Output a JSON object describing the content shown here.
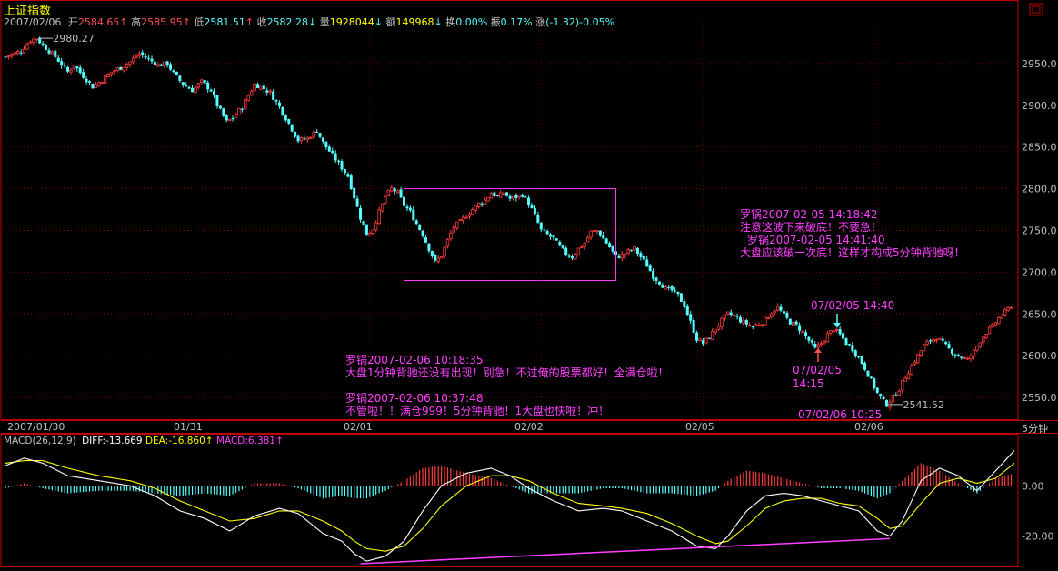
{
  "header": {
    "title": "上证指数",
    "date": "2007/02/06",
    "open_label": "开",
    "open": "2584.65",
    "high_label": "高",
    "high": "2585.95",
    "low_label": "低",
    "low": "2581.51",
    "close_label": "收",
    "close": "2582.28",
    "volume_label": "量",
    "volume": "1928044",
    "amount_label": "额",
    "amount": "149968",
    "turnover_label": "换",
    "turnover": "0.00%",
    "amplitude_label": "振",
    "amplitude": "0.17%",
    "change_label": "涨",
    "change": "(-1.32)-0.05%"
  },
  "period": "5分钟",
  "colors": {
    "up": "#ff3c3c",
    "down": "#54ffff",
    "annotation": "#ff40ff",
    "axis_frame": "#c00000",
    "yellow": "#ffff00",
    "white": "#ffffff"
  },
  "chart_data": [
    {
      "type": "candlestick",
      "title": "上证指数",
      "ylim": [
        2525,
        3000
      ],
      "y_ticks": [
        "2950.0",
        "2900.0",
        "2850.0",
        "2800.0",
        "2750.0",
        "2700.0",
        "2650.0",
        "2600.0",
        "2550.0"
      ],
      "x_tick_labels": [
        "2007/01/30",
        "01/31",
        "02/01",
        "02/02",
        "02/05",
        "02/06"
      ],
      "close_series": [
        [
          0,
          2958
        ],
        [
          5,
          2965
        ],
        [
          8,
          2978
        ],
        [
          10,
          2980.27
        ],
        [
          12,
          2972
        ],
        [
          16,
          2958
        ],
        [
          20,
          2940
        ],
        [
          22,
          2948
        ],
        [
          25,
          2935
        ],
        [
          28,
          2922
        ],
        [
          31,
          2930
        ],
        [
          34,
          2940
        ],
        [
          37,
          2945
        ],
        [
          40,
          2952
        ],
        [
          43,
          2962
        ],
        [
          46,
          2955
        ],
        [
          49,
          2948
        ],
        [
          52,
          2950
        ],
        [
          54,
          2938
        ],
        [
          57,
          2925
        ],
        [
          60,
          2918
        ],
        [
          63,
          2928
        ],
        [
          66,
          2918
        ],
        [
          68,
          2900
        ],
        [
          71,
          2880
        ],
        [
          73,
          2885
        ],
        [
          76,
          2898
        ],
        [
          78,
          2912
        ],
        [
          80,
          2925
        ],
        [
          82,
          2922
        ],
        [
          85,
          2915
        ],
        [
          88,
          2898
        ],
        [
          91,
          2878
        ],
        [
          94,
          2858
        ],
        [
          97,
          2860
        ],
        [
          100,
          2870
        ],
        [
          102,
          2855
        ],
        [
          105,
          2840
        ],
        [
          107,
          2830
        ],
        [
          110,
          2815
        ],
        [
          112,
          2790
        ],
        [
          114,
          2765
        ],
        [
          116,
          2745
        ],
        [
          118,
          2752
        ],
        [
          120,
          2772
        ],
        [
          122,
          2790
        ],
        [
          124,
          2800
        ],
        [
          126,
          2795
        ],
        [
          128,
          2780
        ],
        [
          130,
          2772
        ],
        [
          132,
          2758
        ],
        [
          134,
          2745
        ],
        [
          136,
          2728
        ],
        [
          138,
          2712
        ],
        [
          140,
          2720
        ],
        [
          142,
          2738
        ],
        [
          144,
          2755
        ],
        [
          146,
          2760
        ],
        [
          148,
          2768
        ],
        [
          150,
          2775
        ],
        [
          152,
          2782
        ],
        [
          154,
          2786
        ],
        [
          156,
          2795
        ],
        [
          158,
          2790
        ],
        [
          160,
          2795
        ],
        [
          162,
          2788
        ],
        [
          164,
          2790
        ],
        [
          166,
          2793
        ],
        [
          168,
          2782
        ],
        [
          170,
          2768
        ],
        [
          172,
          2750
        ],
        [
          174,
          2745
        ],
        [
          176,
          2740
        ],
        [
          178,
          2730
        ],
        [
          180,
          2722
        ],
        [
          182,
          2718
        ],
        [
          184,
          2728
        ],
        [
          186,
          2735
        ],
        [
          188,
          2748
        ],
        [
          190,
          2750
        ],
        [
          192,
          2740
        ],
        [
          194,
          2730
        ],
        [
          196,
          2718
        ],
        [
          198,
          2720
        ],
        [
          200,
          2725
        ],
        [
          202,
          2728
        ],
        [
          204,
          2718
        ],
        [
          206,
          2708
        ],
        [
          208,
          2695
        ],
        [
          210,
          2688
        ],
        [
          212,
          2680
        ],
        [
          214,
          2678
        ],
        [
          216,
          2672
        ],
        [
          218,
          2660
        ],
        [
          220,
          2640
        ],
        [
          222,
          2620
        ],
        [
          224,
          2615
        ],
        [
          226,
          2622
        ],
        [
          228,
          2632
        ],
        [
          230,
          2642
        ],
        [
          232,
          2650
        ],
        [
          234,
          2648
        ],
        [
          236,
          2642
        ],
        [
          238,
          2638
        ],
        [
          240,
          2635
        ],
        [
          242,
          2638
        ],
        [
          244,
          2643
        ],
        [
          246,
          2652
        ],
        [
          248,
          2658
        ],
        [
          250,
          2648
        ],
        [
          252,
          2640
        ],
        [
          254,
          2636
        ],
        [
          256,
          2628
        ],
        [
          258,
          2618
        ],
        [
          260,
          2608
        ],
        [
          262,
          2615
        ],
        [
          264,
          2625
        ],
        [
          266,
          2632
        ],
        [
          268,
          2625
        ],
        [
          270,
          2615
        ],
        [
          272,
          2608
        ],
        [
          274,
          2598
        ],
        [
          276,
          2585
        ],
        [
          278,
          2570
        ],
        [
          280,
          2555
        ],
        [
          282,
          2545
        ],
        [
          283,
          2541.52
        ],
        [
          285,
          2550
        ],
        [
          287,
          2560
        ],
        [
          289,
          2575
        ],
        [
          291,
          2588
        ],
        [
          293,
          2600
        ],
        [
          295,
          2612
        ],
        [
          297,
          2618
        ],
        [
          299,
          2622
        ],
        [
          301,
          2615
        ],
        [
          303,
          2608
        ],
        [
          305,
          2602
        ],
        [
          307,
          2598
        ],
        [
          309,
          2595
        ],
        [
          311,
          2605
        ],
        [
          313,
          2618
        ],
        [
          315,
          2628
        ],
        [
          317,
          2635
        ],
        [
          319,
          2645
        ],
        [
          321,
          2652
        ],
        [
          323,
          2660
        ]
      ],
      "labels": [
        {
          "text": "2980.27",
          "x": 10,
          "y": 2980.27
        },
        {
          "text": "2541.52",
          "x": 283,
          "y": 2541.52
        }
      ],
      "highlight_box": {
        "x": [
          128,
          196
        ],
        "y": [
          2690,
          2800
        ]
      },
      "annotations": {
        "note1_title": "罗锅2007-02-05 14:18:42",
        "note1_text": "注意这波下来破底！不要急！",
        "note2_title": "罗锅2007-02-05 14:41:40",
        "note2_text": "大盘应该破一次底！这样才构成5分钟背驰呀！",
        "note3_title": "罗锅2007-02-06 10:18:35",
        "note3_text": "大盘1分钟背驰还没有出现！别急！不过俺的股票都好！全满仓啦！",
        "note4_title": "罗锅2007-02-06 10:37:48",
        "note4_text": "不管啦！！满仓999！5分钟背驰！1大盘也快啦！冲！",
        "mark_a_date": "07/02/05",
        "mark_a_time": "14:15",
        "mark_b": "07/02/05 14:40",
        "mark_c": "07/02/06 10:25"
      }
    },
    {
      "type": "line",
      "title": "MACD(26,12,9)",
      "diff_label": "DIFF:",
      "diff": "-13.669",
      "dea_label": "DEA:",
      "dea": "-16.860",
      "macd_label": "MACD:",
      "macd": "6.381",
      "ylim": [
        -31,
        16
      ],
      "y_ticks": [
        "0.00",
        "-20.00"
      ],
      "diff_series": [
        [
          0,
          8
        ],
        [
          6,
          11
        ],
        [
          12,
          9
        ],
        [
          20,
          4
        ],
        [
          30,
          2
        ],
        [
          40,
          0
        ],
        [
          48,
          -4
        ],
        [
          56,
          -10
        ],
        [
          64,
          -13
        ],
        [
          72,
          -18
        ],
        [
          80,
          -12
        ],
        [
          88,
          -9
        ],
        [
          94,
          -11
        ],
        [
          102,
          -19
        ],
        [
          108,
          -22
        ],
        [
          112,
          -27
        ],
        [
          116,
          -30
        ],
        [
          122,
          -28
        ],
        [
          128,
          -22
        ],
        [
          134,
          -10
        ],
        [
          140,
          0
        ],
        [
          148,
          5
        ],
        [
          156,
          7
        ],
        [
          162,
          4
        ],
        [
          168,
          -1
        ],
        [
          176,
          -6
        ],
        [
          184,
          -10
        ],
        [
          192,
          -9
        ],
        [
          198,
          -10
        ],
        [
          206,
          -14
        ],
        [
          214,
          -18
        ],
        [
          222,
          -24
        ],
        [
          228,
          -25
        ],
        [
          232,
          -20
        ],
        [
          238,
          -10
        ],
        [
          244,
          -4
        ],
        [
          250,
          -3
        ],
        [
          256,
          -4
        ],
        [
          262,
          -6
        ],
        [
          268,
          -8
        ],
        [
          274,
          -10
        ],
        [
          280,
          -18
        ],
        [
          284,
          -20
        ],
        [
          288,
          -14
        ],
        [
          294,
          2
        ],
        [
          300,
          7
        ],
        [
          306,
          4
        ],
        [
          312,
          -2
        ],
        [
          318,
          6
        ],
        [
          324,
          14
        ]
      ],
      "dea_series": [
        [
          0,
          9
        ],
        [
          6,
          10
        ],
        [
          12,
          10
        ],
        [
          20,
          7
        ],
        [
          30,
          4
        ],
        [
          40,
          2
        ],
        [
          48,
          -1
        ],
        [
          56,
          -6
        ],
        [
          64,
          -10
        ],
        [
          72,
          -14
        ],
        [
          80,
          -13
        ],
        [
          88,
          -10
        ],
        [
          94,
          -10
        ],
        [
          102,
          -14
        ],
        [
          108,
          -18
        ],
        [
          112,
          -22
        ],
        [
          116,
          -25
        ],
        [
          122,
          -26
        ],
        [
          128,
          -24
        ],
        [
          134,
          -17
        ],
        [
          140,
          -8
        ],
        [
          148,
          0
        ],
        [
          156,
          4
        ],
        [
          162,
          4
        ],
        [
          168,
          2
        ],
        [
          176,
          -3
        ],
        [
          184,
          -7
        ],
        [
          192,
          -8
        ],
        [
          198,
          -9
        ],
        [
          206,
          -11
        ],
        [
          214,
          -15
        ],
        [
          222,
          -20
        ],
        [
          228,
          -23
        ],
        [
          232,
          -22
        ],
        [
          238,
          -16
        ],
        [
          244,
          -9
        ],
        [
          250,
          -6
        ],
        [
          256,
          -5
        ],
        [
          262,
          -5
        ],
        [
          268,
          -7
        ],
        [
          274,
          -8
        ],
        [
          280,
          -13
        ],
        [
          284,
          -17
        ],
        [
          288,
          -16
        ],
        [
          294,
          -7
        ],
        [
          300,
          1
        ],
        [
          306,
          3
        ],
        [
          312,
          1
        ],
        [
          318,
          3
        ],
        [
          324,
          9
        ]
      ],
      "macd_series": [
        [
          0,
          -1
        ],
        [
          6,
          1
        ],
        [
          12,
          -1
        ],
        [
          20,
          -3
        ],
        [
          30,
          -2
        ],
        [
          40,
          -2
        ],
        [
          48,
          -3
        ],
        [
          56,
          -4
        ],
        [
          64,
          -3
        ],
        [
          72,
          -4
        ],
        [
          80,
          1
        ],
        [
          88,
          1
        ],
        [
          94,
          -1
        ],
        [
          102,
          -5
        ],
        [
          108,
          -4
        ],
        [
          112,
          -5
        ],
        [
          116,
          -5
        ],
        [
          122,
          -2
        ],
        [
          128,
          2
        ],
        [
          134,
          7
        ],
        [
          140,
          8
        ],
        [
          148,
          5
        ],
        [
          156,
          3
        ],
        [
          162,
          0
        ],
        [
          168,
          -3
        ],
        [
          176,
          -3
        ],
        [
          184,
          -3
        ],
        [
          192,
          -1
        ],
        [
          198,
          -1
        ],
        [
          206,
          -3
        ],
        [
          214,
          -3
        ],
        [
          222,
          -4
        ],
        [
          228,
          -2
        ],
        [
          232,
          2
        ],
        [
          238,
          6
        ],
        [
          244,
          5
        ],
        [
          250,
          3
        ],
        [
          256,
          1
        ],
        [
          262,
          -1
        ],
        [
          268,
          -1
        ],
        [
          274,
          -2
        ],
        [
          280,
          -5
        ],
        [
          284,
          -3
        ],
        [
          288,
          2
        ],
        [
          294,
          9
        ],
        [
          300,
          6
        ],
        [
          306,
          1
        ],
        [
          312,
          -3
        ],
        [
          318,
          3
        ],
        [
          324,
          5
        ]
      ],
      "divergence_line": {
        "x": [
          114,
          284
        ],
        "y": [
          -31,
          -21
        ]
      }
    }
  ]
}
